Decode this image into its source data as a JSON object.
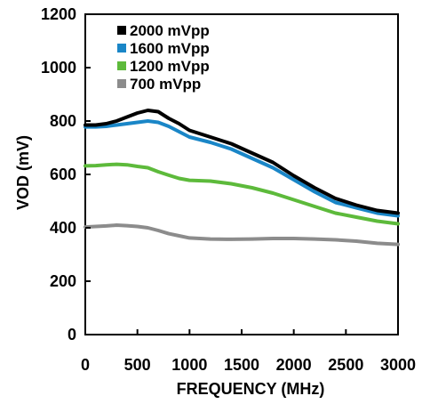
{
  "chart_data": {
    "type": "line",
    "title": "",
    "xlabel": "FREQUENCY (MHz)",
    "ylabel": "VOD (mV)",
    "xlim": [
      0,
      3000
    ],
    "ylim": [
      0,
      1200
    ],
    "x_ticks": [
      "0",
      "500",
      "1000",
      "1500",
      "2000",
      "2500",
      "3000"
    ],
    "y_ticks": [
      "0",
      "200",
      "400",
      "600",
      "800",
      "1000",
      "1200"
    ],
    "grid": false,
    "legend_position": "top-left",
    "series": [
      {
        "name": "2000 mVpp",
        "color": "#000000",
        "x": [
          0,
          100,
          200,
          300,
          400,
          500,
          600,
          700,
          800,
          900,
          1000,
          1200,
          1400,
          1600,
          1800,
          2000,
          2200,
          2400,
          2600,
          2800,
          3000
        ],
        "values": [
          785,
          785,
          790,
          800,
          815,
          830,
          840,
          835,
          810,
          790,
          765,
          740,
          715,
          680,
          645,
          595,
          550,
          510,
          485,
          465,
          455
        ]
      },
      {
        "name": "1600 mVpp",
        "color": "#1a86c7",
        "x": [
          0,
          100,
          200,
          300,
          400,
          500,
          600,
          700,
          800,
          900,
          1000,
          1200,
          1400,
          1600,
          1800,
          2000,
          2200,
          2400,
          2600,
          2800,
          3000
        ],
        "values": [
          778,
          778,
          780,
          785,
          790,
          795,
          800,
          795,
          780,
          760,
          740,
          720,
          695,
          660,
          625,
          580,
          535,
          495,
          475,
          455,
          445
        ]
      },
      {
        "name": "1200 mVpp",
        "color": "#5dba3b",
        "x": [
          0,
          100,
          200,
          300,
          400,
          500,
          600,
          700,
          800,
          900,
          1000,
          1200,
          1400,
          1600,
          1800,
          2000,
          2200,
          2400,
          2600,
          2800,
          3000
        ],
        "values": [
          632,
          633,
          636,
          638,
          636,
          630,
          625,
          610,
          597,
          585,
          578,
          575,
          565,
          550,
          530,
          505,
          480,
          455,
          440,
          425,
          415
        ]
      },
      {
        "name": "700 mVpp",
        "color": "#8c8c8c",
        "x": [
          0,
          100,
          200,
          300,
          400,
          500,
          600,
          700,
          800,
          900,
          1000,
          1200,
          1400,
          1600,
          1800,
          2000,
          2200,
          2400,
          2600,
          2800,
          3000
        ],
        "values": [
          403,
          405,
          407,
          410,
          408,
          405,
          400,
          390,
          378,
          370,
          362,
          358,
          357,
          358,
          360,
          360,
          358,
          355,
          350,
          342,
          338
        ]
      }
    ]
  }
}
